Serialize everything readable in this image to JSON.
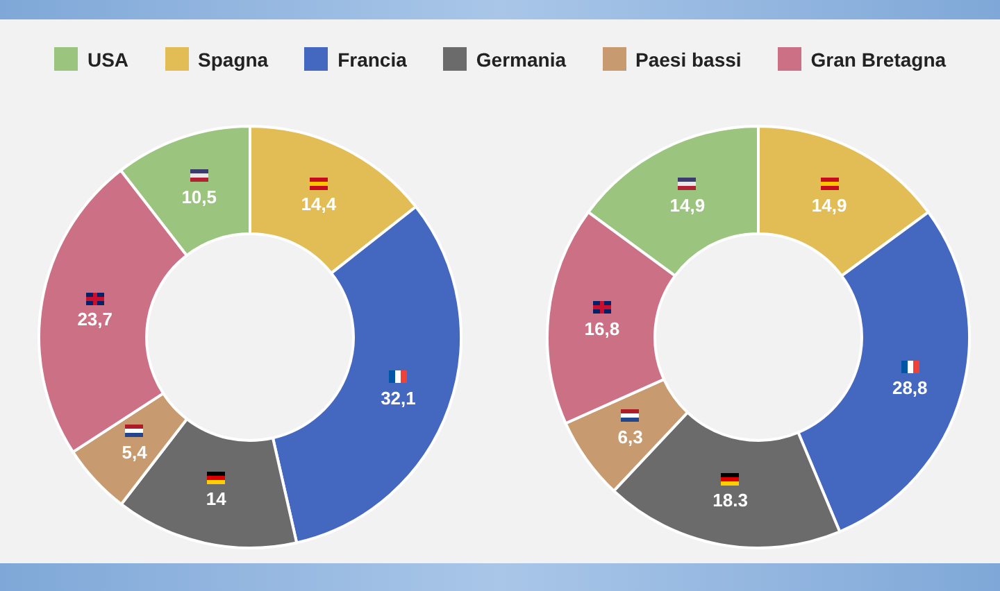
{
  "chart_data": [
    {
      "type": "donut",
      "categories": [
        "USA",
        "Spagna",
        "Francia",
        "Germania",
        "Paesi bassi",
        "Gran Bretagna"
      ],
      "values": [
        10.5,
        14.4,
        32.1,
        14,
        5.4,
        23.7
      ],
      "value_labels": [
        "10,5",
        "14,4",
        "32,1",
        "14",
        "5,4",
        "23,7"
      ],
      "colors": [
        "#9bc47f",
        "#e2bd55",
        "#4468bf",
        "#6b6b6b",
        "#c79a6f",
        "#cc7085"
      ],
      "legend": "top"
    },
    {
      "type": "donut",
      "categories": [
        null,
        null,
        null,
        null,
        null,
        null
      ],
      "values": [
        14.9,
        14.9,
        28.8,
        18.3,
        6.3,
        16.8
      ],
      "value_labels": [
        "14,9",
        "14,9",
        "28,8",
        "18.3",
        "6,3",
        "16,8"
      ],
      "colors": [
        "#9bc47f",
        "#e2bd55",
        "#4468bf",
        "#6b6b6b",
        "#c79a6f",
        "#cc7085"
      ]
    }
  ]
}
